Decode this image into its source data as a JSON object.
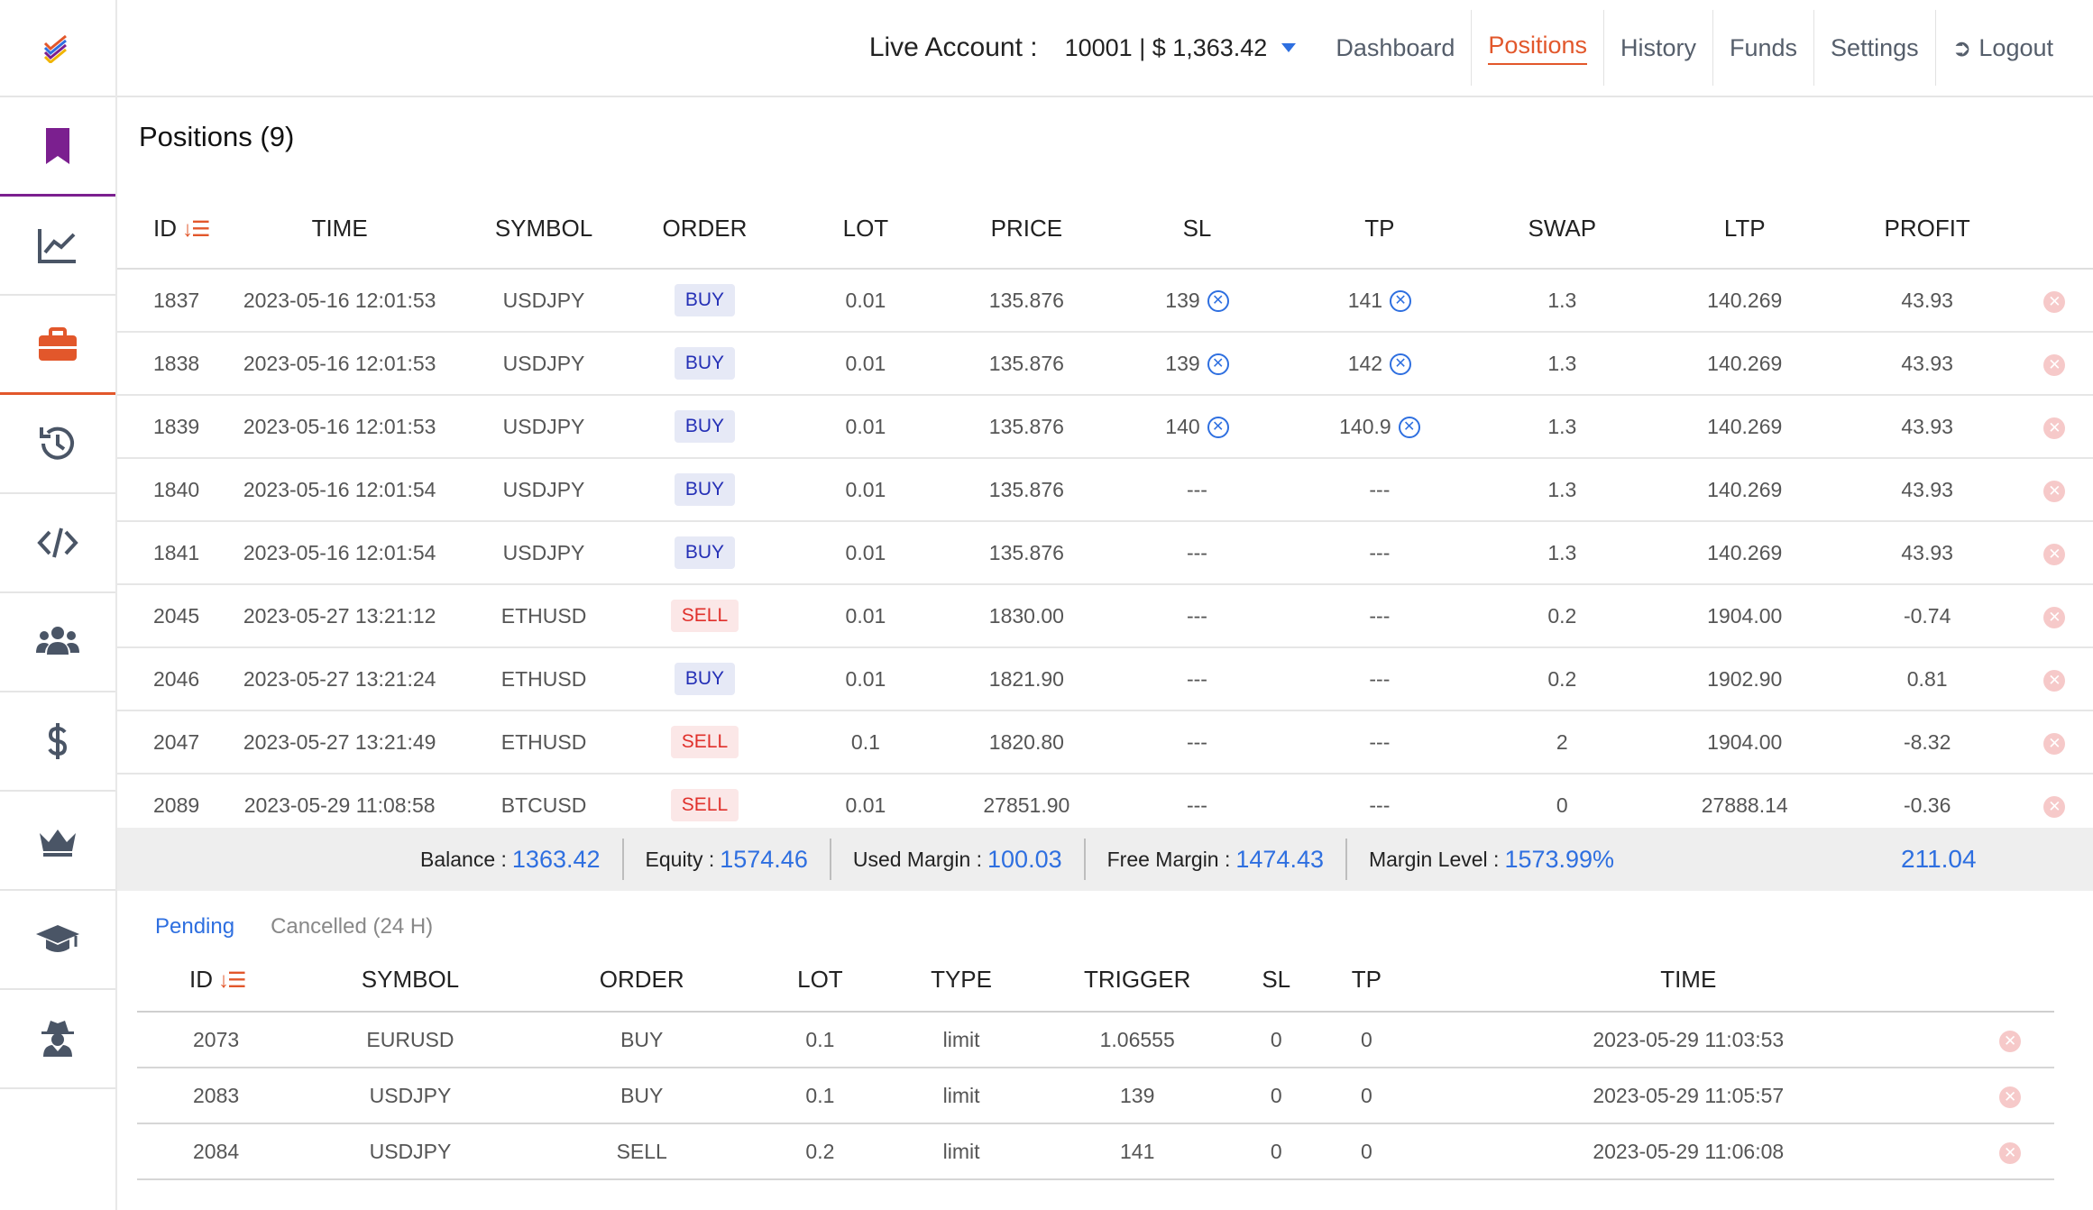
{
  "header": {
    "account_label": "Live Account :",
    "account_value": "10001 | $ 1,363.42",
    "nav": [
      "Dashboard",
      "Positions",
      "History",
      "Funds",
      "Settings"
    ],
    "logout": "Logout"
  },
  "sidebar": {
    "items": [
      "logo",
      "bookmark",
      "chart",
      "briefcase",
      "history",
      "code",
      "users",
      "dollar",
      "crown",
      "graduation",
      "spy"
    ]
  },
  "page_title": "Positions (9)",
  "positions": {
    "headers": [
      "ID",
      "TIME",
      "SYMBOL",
      "ORDER",
      "LOT",
      "PRICE",
      "SL",
      "TP",
      "SWAP",
      "LTP",
      "PROFIT"
    ],
    "rows": [
      {
        "id": "1837",
        "time": "2023-05-16 12:01:53",
        "symbol": "USDJPY",
        "order": "BUY",
        "lot": "0.01",
        "price": "135.876",
        "sl": "139",
        "tp": "141",
        "swap": "1.3",
        "ltp": "140.269",
        "profit": "43.93"
      },
      {
        "id": "1838",
        "time": "2023-05-16 12:01:53",
        "symbol": "USDJPY",
        "order": "BUY",
        "lot": "0.01",
        "price": "135.876",
        "sl": "139",
        "tp": "142",
        "swap": "1.3",
        "ltp": "140.269",
        "profit": "43.93"
      },
      {
        "id": "1839",
        "time": "2023-05-16 12:01:53",
        "symbol": "USDJPY",
        "order": "BUY",
        "lot": "0.01",
        "price": "135.876",
        "sl": "140",
        "tp": "140.9",
        "swap": "1.3",
        "ltp": "140.269",
        "profit": "43.93"
      },
      {
        "id": "1840",
        "time": "2023-05-16 12:01:54",
        "symbol": "USDJPY",
        "order": "BUY",
        "lot": "0.01",
        "price": "135.876",
        "sl": "---",
        "tp": "---",
        "swap": "1.3",
        "ltp": "140.269",
        "profit": "43.93"
      },
      {
        "id": "1841",
        "time": "2023-05-16 12:01:54",
        "symbol": "USDJPY",
        "order": "BUY",
        "lot": "0.01",
        "price": "135.876",
        "sl": "---",
        "tp": "---",
        "swap": "1.3",
        "ltp": "140.269",
        "profit": "43.93"
      },
      {
        "id": "2045",
        "time": "2023-05-27 13:21:12",
        "symbol": "ETHUSD",
        "order": "SELL",
        "lot": "0.01",
        "price": "1830.00",
        "sl": "---",
        "tp": "---",
        "swap": "0.2",
        "ltp": "1904.00",
        "profit": "-0.74"
      },
      {
        "id": "2046",
        "time": "2023-05-27 13:21:24",
        "symbol": "ETHUSD",
        "order": "BUY",
        "lot": "0.01",
        "price": "1821.90",
        "sl": "---",
        "tp": "---",
        "swap": "0.2",
        "ltp": "1902.90",
        "profit": "0.81"
      },
      {
        "id": "2047",
        "time": "2023-05-27 13:21:49",
        "symbol": "ETHUSD",
        "order": "SELL",
        "lot": "0.1",
        "price": "1820.80",
        "sl": "---",
        "tp": "---",
        "swap": "2",
        "ltp": "1904.00",
        "profit": "-8.32"
      },
      {
        "id": "2089",
        "time": "2023-05-29 11:08:58",
        "symbol": "BTCUSD",
        "order": "SELL",
        "lot": "0.01",
        "price": "27851.90",
        "sl": "---",
        "tp": "---",
        "swap": "0",
        "ltp": "27888.14",
        "profit": "-0.36"
      }
    ]
  },
  "summary": {
    "balance_label": "Balance :",
    "balance": "1363.42",
    "equity_label": "Equity :",
    "equity": "1574.46",
    "used_margin_label": "Used Margin :",
    "used_margin": "100.03",
    "free_margin_label": "Free Margin :",
    "free_margin": "1474.43",
    "margin_level_label": "Margin Level :",
    "margin_level": "1573.99%",
    "total_profit": "211.04"
  },
  "pending_tabs": [
    "Pending",
    "Cancelled (24 H)"
  ],
  "pending": {
    "headers": [
      "ID",
      "SYMBOL",
      "ORDER",
      "LOT",
      "TYPE",
      "TRIGGER",
      "SL",
      "TP",
      "TIME"
    ],
    "rows": [
      {
        "id": "2073",
        "symbol": "EURUSD",
        "order": "BUY",
        "lot": "0.1",
        "type": "limit",
        "trigger": "1.06555",
        "sl": "0",
        "tp": "0",
        "time": "2023-05-29 11:03:53"
      },
      {
        "id": "2083",
        "symbol": "USDJPY",
        "order": "BUY",
        "lot": "0.1",
        "type": "limit",
        "trigger": "139",
        "sl": "0",
        "tp": "0",
        "time": "2023-05-29 11:05:57"
      },
      {
        "id": "2084",
        "symbol": "USDJPY",
        "order": "SELL",
        "lot": "0.2",
        "type": "limit",
        "trigger": "141",
        "sl": "0",
        "tp": "0",
        "time": "2023-05-29 11:06:08"
      }
    ]
  },
  "colors": {
    "accent": "#e2572b",
    "link": "#2e6fe0",
    "buy_text": "#2530b6",
    "sell_text": "#e0302b",
    "bookmark": "#7b1f8f"
  }
}
